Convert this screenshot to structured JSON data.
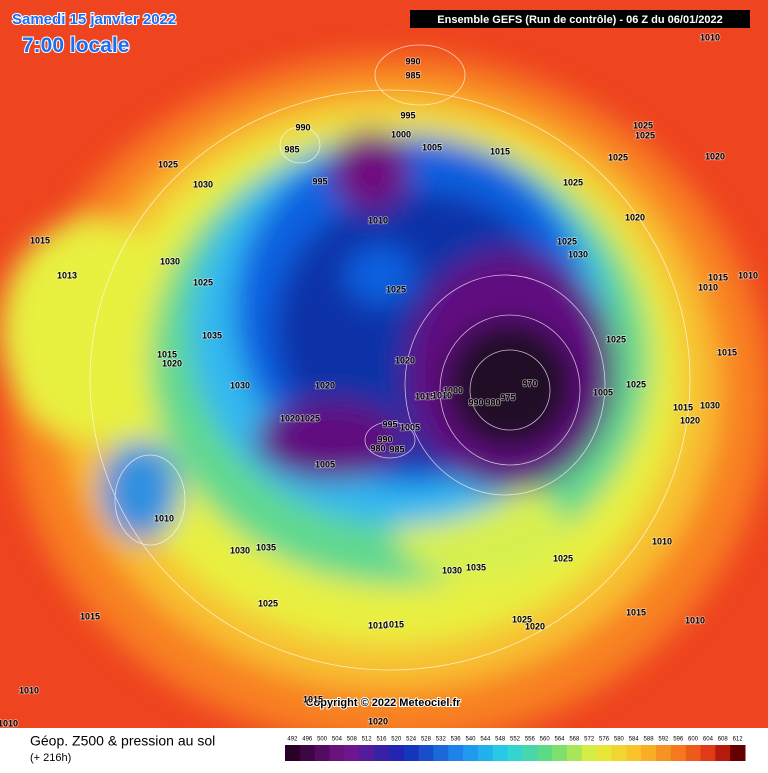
{
  "header": {
    "date": "Samedi 15 janvier 2022",
    "time": "7:00 locale",
    "model": "Ensemble GEFS  (Run de contrôle)  - 06 Z du 06/01/2022"
  },
  "footer": {
    "title": "Géop. Z500 & pression au sol",
    "lead": "(+ 216h)"
  },
  "copyright": "Copyright © 2022 Meteociel.fr",
  "isobar_labels": [
    1010,
    990,
    985,
    995,
    990,
    985,
    1000,
    1005,
    1015,
    1025,
    1025,
    1025,
    1030,
    995,
    1025,
    1025,
    1020,
    1010,
    1020,
    1025,
    1030,
    1015,
    1030,
    1013,
    1025,
    1025,
    1015,
    1010,
    1010,
    1035,
    1025,
    1015,
    1015,
    1020,
    1020,
    1025,
    1005,
    1030,
    1020,
    970,
    1000,
    1015,
    1010,
    990,
    980,
    975,
    1015,
    1030,
    1020,
    1025,
    1020,
    995,
    1005,
    990,
    980,
    985,
    1005,
    1010,
    1010,
    1030,
    1035,
    1025,
    1030,
    1035,
    1025,
    1015,
    1015,
    1015,
    1010,
    1025,
    1020,
    1010,
    1010,
    1015,
    1020,
    1010
  ],
  "colorbar": {
    "ticks": [
      492,
      496,
      500,
      504,
      508,
      512,
      516,
      520,
      524,
      528,
      532,
      536,
      540,
      544,
      548,
      552,
      556,
      560,
      564,
      568,
      572,
      576,
      580,
      584,
      588,
      592,
      596,
      600,
      604,
      608,
      612
    ]
  }
}
